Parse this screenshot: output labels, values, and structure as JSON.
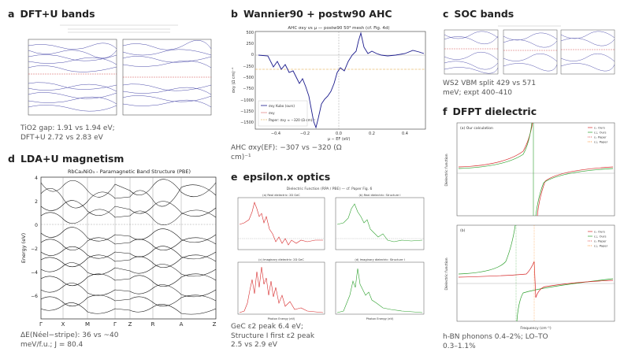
{
  "panels": {
    "a": {
      "letter": "a",
      "title": "DFT+U bands",
      "caption_l1": "TiO2 gap: 1.91 vs 1.94 eV;",
      "caption_l2": "DFT+U 2.72 vs 2.83 eV"
    },
    "b": {
      "letter": "b",
      "title": "Wannier90 + postw90 AHC",
      "caption_l1": "AHC σxy(EF): −307 vs −320 (Ω",
      "caption_l2": "cm)⁻¹",
      "plot_title": "AHC σxy vs μ — postw90 50³ mesh (cf. Fig. 4d)",
      "xlabel": "μ − EF (eV)",
      "ylabel": "σxy (Ω cm)⁻¹",
      "legend": [
        "σxy Kubo (ours)",
        "σxy",
        "Paper: σxy ≈ −320 (Ω cm)⁻¹"
      ]
    },
    "c": {
      "letter": "c",
      "title": "SOC bands",
      "caption_l1": "WS2 VBM split 429 vs 571",
      "caption_l2": "meV; expt 400–410"
    },
    "d": {
      "letter": "d",
      "title": "LDA+U magnetism",
      "caption_l1": "ΔE(Néel−stripe): 36 vs ~40",
      "caption_l2": "meV/f.u.; J = 80.4",
      "plot_title": "RbCa₂NiO₃ - Paramagnetic Band Structure (PBE)",
      "ylabel": "Energy (eV)",
      "kpoints": [
        "Γ",
        "X",
        "M",
        "Γ",
        "Z",
        "R",
        "A",
        "Z"
      ]
    },
    "e": {
      "letter": "e",
      "title": "epsilon.x optics",
      "caption_l1": "GeC ε2 peak 6.4 eV;",
      "caption_l2": "Structure I first ε2 peak",
      "caption_l3": "2.5 vs 2.9 eV",
      "plot_title": "Dielectric Function (RPA / PBE) — cf. Paper Fig. 6",
      "sub_titles": [
        "(a) Real dielectric: 2D GeC",
        "(b) Real dielectric: Structure I",
        "(c) Imaginary dielectric: 2D GeC",
        "(d) Imaginary dielectric: Structure I"
      ],
      "xlabel": "Photon Energy (eV)"
    },
    "f": {
      "letter": "f",
      "title": "DFPT dielectric",
      "caption_l1": "h-BN phonons 0.4–2%; LO–TO",
      "caption_l2": "0.3–1.1%",
      "sub_a": "(a) Our calculation",
      "sub_b": "(b)",
      "ylabel": "Dielectric function",
      "xlabel": "Frequency (cm⁻¹)",
      "legend": [
        "εₓ Ours",
        "ε⊥ Ours",
        "εₓ Paper",
        "ε⊥ Paper"
      ]
    }
  },
  "colors": {
    "text": "#222222",
    "caption": "#555555",
    "blue": "#1a1a8c",
    "red": "#d62728",
    "green": "#2ca02c",
    "orange": "#ff7f0e"
  }
}
